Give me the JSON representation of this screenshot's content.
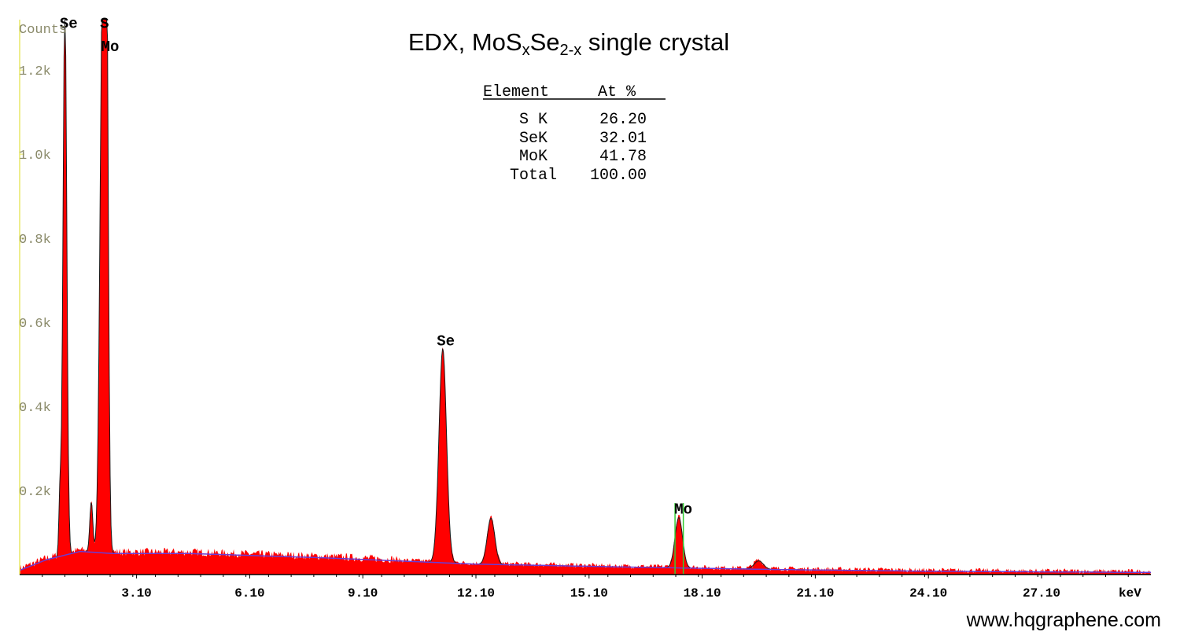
{
  "chart_data": {
    "type": "line",
    "title": "EDX, MoS",
    "title_sub1": "x",
    "title_mid": "Se",
    "title_sub2": "2-x",
    "title_tail": " single crystal",
    "ylabel": "Counts",
    "xlabel": "keV",
    "ylim": [
      0,
      1.32
    ],
    "xlim": [
      0,
      30.0
    ],
    "y_ticks": [
      {
        "value": 0.2,
        "label": "0.2k"
      },
      {
        "value": 0.4,
        "label": "0.4k"
      },
      {
        "value": 0.6,
        "label": "0.6k"
      },
      {
        "value": 0.8,
        "label": "0.8k"
      },
      {
        "value": 1.0,
        "label": "1.0k"
      },
      {
        "value": 1.2,
        "label": "1.2k"
      }
    ],
    "x_ticks": [
      {
        "value": 3.1,
        "label": "3.10"
      },
      {
        "value": 6.1,
        "label": "6.10"
      },
      {
        "value": 9.1,
        "label": "9.10"
      },
      {
        "value": 12.1,
        "label": "12.10"
      },
      {
        "value": 15.1,
        "label": "15.10"
      },
      {
        "value": 18.1,
        "label": "18.10"
      },
      {
        "value": 21.1,
        "label": "21.10"
      },
      {
        "value": 24.1,
        "label": "24.10"
      },
      {
        "value": 27.1,
        "label": "27.10"
      }
    ],
    "peaks": [
      {
        "element": "Se",
        "energy": 1.2,
        "counts": 1.32,
        "width": 0.05
      },
      {
        "element": "S",
        "energy": 2.2,
        "counts": 1.32,
        "width": 0.07
      },
      {
        "element": "Mo",
        "energy": 2.3,
        "counts": 1.2,
        "width": 0.05
      },
      {
        "element": "Se",
        "energy": 11.22,
        "counts": 0.51,
        "width": 0.1
      },
      {
        "element": "Mo",
        "energy": 17.48,
        "counts": 0.12,
        "width": 0.1
      }
    ],
    "minor_peaks": [
      {
        "energy": 1.07,
        "counts": 0.15,
        "width": 0.03
      },
      {
        "energy": 1.9,
        "counts": 0.12,
        "width": 0.04
      },
      {
        "energy": 12.5,
        "counts": 0.11,
        "width": 0.1
      },
      {
        "energy": 19.6,
        "counts": 0.02,
        "width": 0.12
      }
    ],
    "background": [
      {
        "energy": 0.0,
        "counts": 0.01
      },
      {
        "energy": 0.7,
        "counts": 0.035
      },
      {
        "energy": 1.6,
        "counts": 0.055
      },
      {
        "energy": 2.5,
        "counts": 0.05
      },
      {
        "energy": 4.5,
        "counts": 0.05
      },
      {
        "energy": 8.0,
        "counts": 0.04
      },
      {
        "energy": 12.0,
        "counts": 0.025
      },
      {
        "energy": 16.0,
        "counts": 0.018
      },
      {
        "energy": 20.0,
        "counts": 0.012
      },
      {
        "energy": 24.0,
        "counts": 0.008
      },
      {
        "energy": 30.0,
        "counts": 0.005
      }
    ],
    "peak_labels": [
      {
        "text": "Se",
        "energy": 1.3,
        "counts": 1.3
      },
      {
        "text": "S",
        "energy": 2.25,
        "counts": 1.3
      },
      {
        "text": "Mo",
        "energy": 2.4,
        "counts": 1.245
      },
      {
        "text": "Se",
        "energy": 11.3,
        "counts": 0.545
      },
      {
        "text": "Mo",
        "energy": 17.6,
        "counts": 0.145
      }
    ],
    "marker_lines": [
      {
        "energy": 17.38,
        "top": 0.17
      },
      {
        "energy": 17.6,
        "top": 0.17
      }
    ],
    "colors": {
      "fill": "#ff0000",
      "outline": "#1a1a1a",
      "background_line": "#6a3cd6",
      "y_axis": "#e8e868",
      "x_axis": "#000000",
      "marker": "#33cc33"
    },
    "table": {
      "header_element": "Element",
      "header_at": "At %",
      "rows": [
        {
          "element": "S K",
          "value": "26.20"
        },
        {
          "element": "SeK",
          "value": "32.01"
        },
        {
          "element": "MoK",
          "value": "41.78"
        },
        {
          "element": "Total",
          "value": "100.00"
        }
      ]
    }
  },
  "watermark": "www.hqgraphene.com"
}
